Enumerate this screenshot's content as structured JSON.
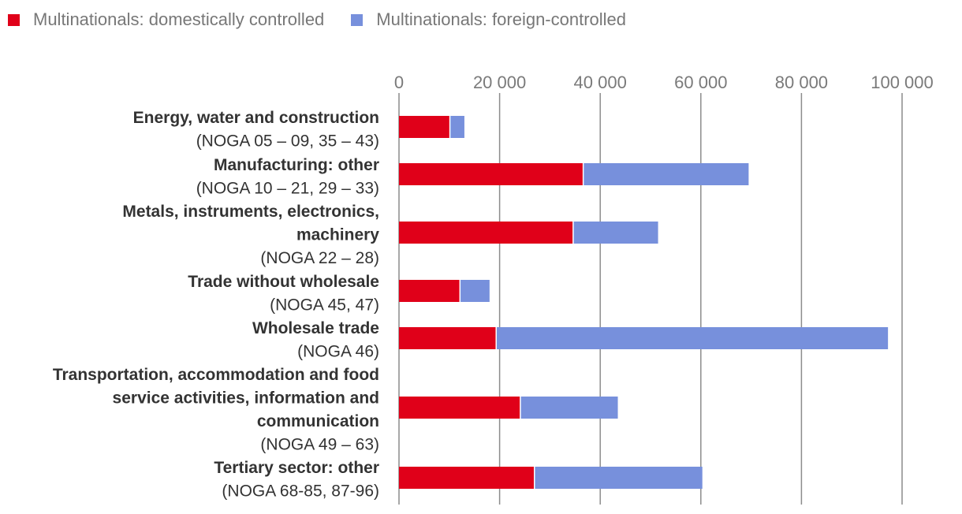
{
  "chart_data": {
    "type": "bar",
    "orientation": "horizontal",
    "stacked": true,
    "title": "",
    "xlabel": "",
    "ylabel": "",
    "xlim": [
      0,
      100000
    ],
    "ticks": [
      0,
      20000,
      40000,
      60000,
      80000,
      100000
    ],
    "tick_labels": [
      "0",
      "20 000",
      "40 000",
      "60 000",
      "80 000",
      "100 000"
    ],
    "grid": true,
    "legend_position": "top-left",
    "categories": [
      {
        "name": [
          "Energy, water and construction"
        ],
        "code": "(NOGA 05 – 09, 35 – 43)"
      },
      {
        "name": [
          "Manufacturing: other"
        ],
        "code": "(NOGA 10 – 21, 29 – 33)"
      },
      {
        "name": [
          "Metals, instruments, electronics,",
          "machinery"
        ],
        "code": "(NOGA 22 – 28)"
      },
      {
        "name": [
          "Trade without wholesale"
        ],
        "code": "(NOGA 45, 47)"
      },
      {
        "name": [
          "Wholesale trade"
        ],
        "code": "(NOGA 46)"
      },
      {
        "name": [
          "Transportation, accommodation and food",
          "service activities, information and",
          "communication"
        ],
        "code": "(NOGA 49 – 63)"
      },
      {
        "name": [
          "Tertiary sector: other"
        ],
        "code": "(NOGA 68-85, 87-96)"
      }
    ],
    "series": [
      {
        "name": "Multinationals: domestically controlled",
        "color": "#e00019",
        "values": [
          10000,
          36500,
          34500,
          12000,
          19200,
          24000,
          26800
        ]
      },
      {
        "name": "Multinationals: foreign-controlled",
        "color": "#7790dc",
        "values": [
          3000,
          33000,
          17000,
          6000,
          78000,
          19500,
          33500
        ]
      }
    ]
  }
}
